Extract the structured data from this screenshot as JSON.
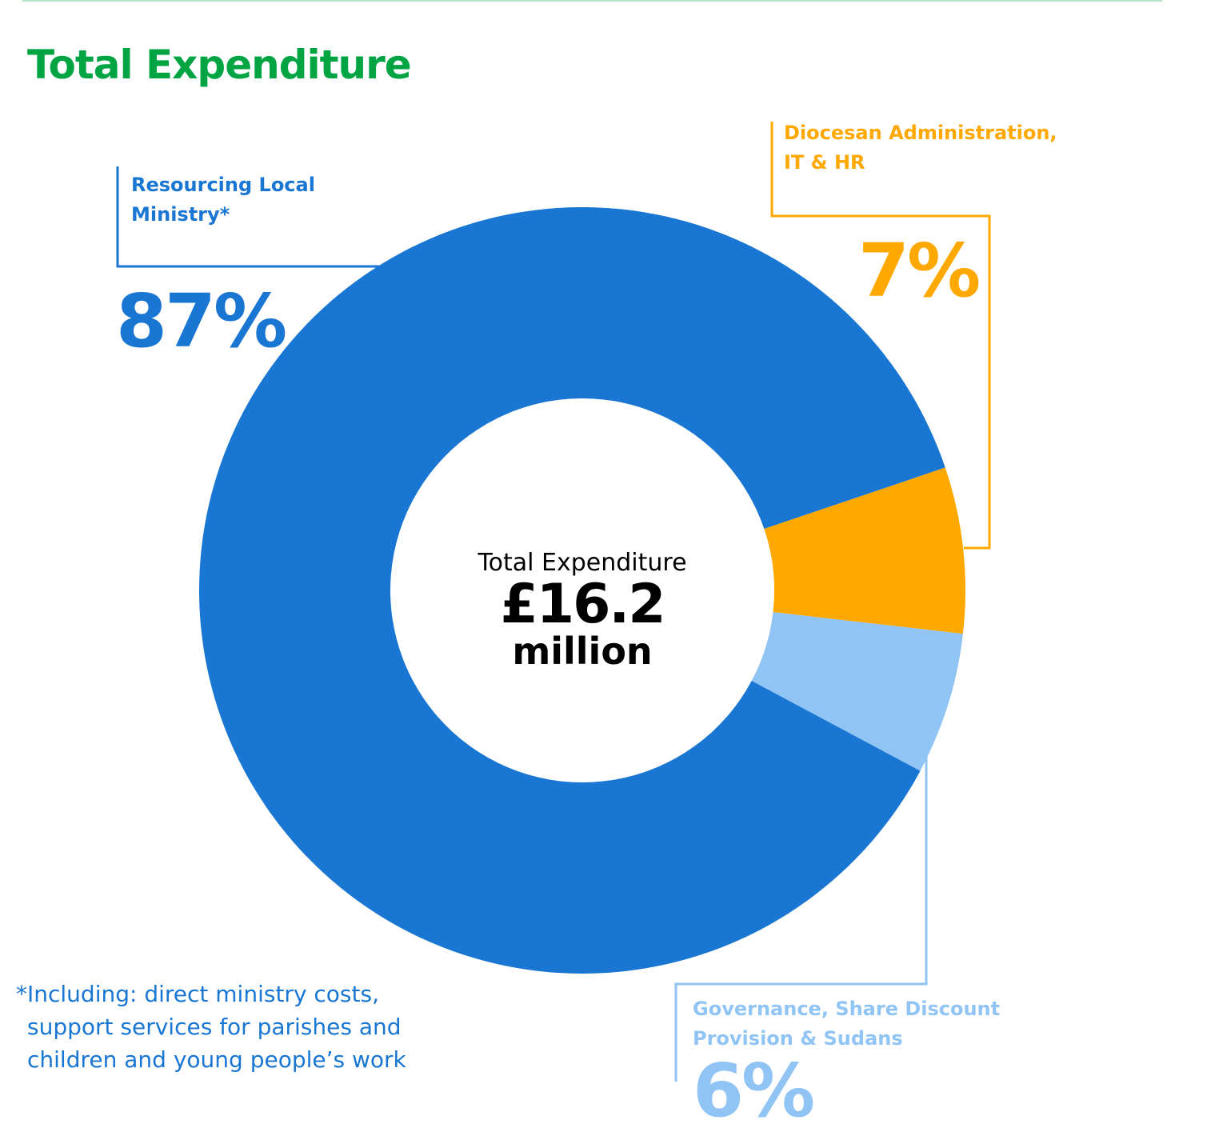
{
  "title": "Total Expenditure",
  "center": {
    "label": "Total Expenditure",
    "amount": "£16.2",
    "unit": "million"
  },
  "footnote": [
    "*Including: direct ministry costs,",
    "support services for parishes and",
    "children and young people’s work"
  ],
  "colors": {
    "title": "#00a443",
    "local_ministry": "#1976d2",
    "admin": "#ffa800",
    "governance": "#90c4f5"
  },
  "chart_data": {
    "type": "pie",
    "donut": true,
    "title": "Total Expenditure",
    "center_text": "Total Expenditure £16.2 million",
    "slices": [
      {
        "key": "admin",
        "label_lines": [
          "Diocesan Administration,",
          "IT & HR"
        ],
        "value": 7,
        "value_label": "7%",
        "color": "#ffa800"
      },
      {
        "key": "governance",
        "label_lines": [
          "Governance, Share Discount",
          "Provision & Sudans"
        ],
        "value": 6,
        "value_label": "6%",
        "color": "#90c4f5"
      },
      {
        "key": "local_ministry",
        "label_lines": [
          "Resourcing Local",
          "Ministry*"
        ],
        "value": 87,
        "value_label": "87%",
        "color": "#1976d2"
      }
    ]
  }
}
